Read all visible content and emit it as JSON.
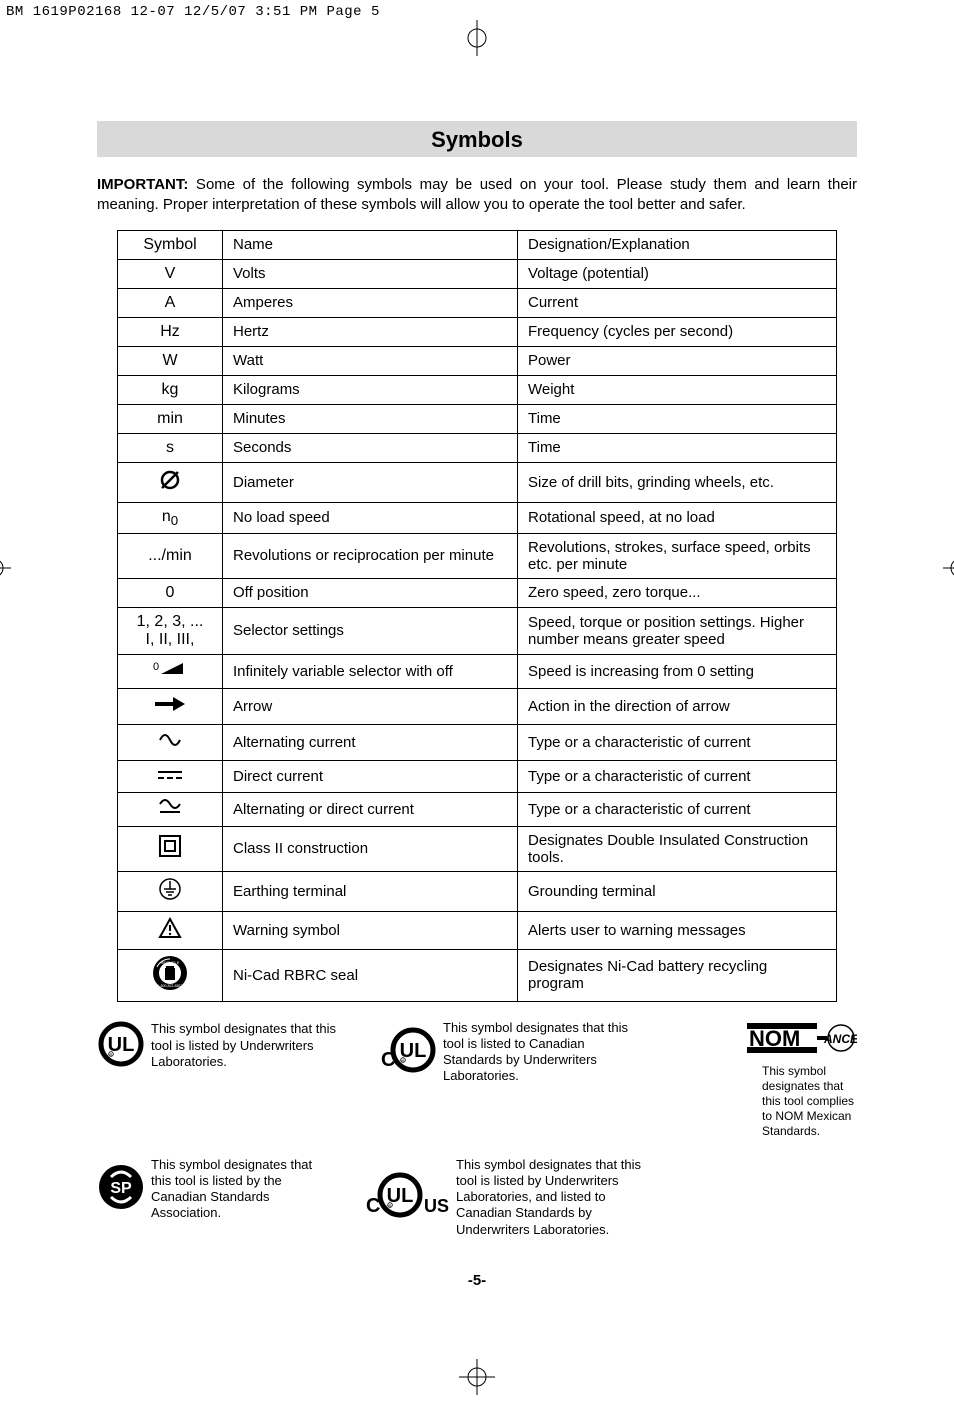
{
  "header_strip": "BM 1619P02168 12-07  12/5/07  3:51 PM  Page 5",
  "title": "Symbols",
  "intro_bold": "IMPORTANT:",
  "intro_rest": " Some of the following symbols may be used on your tool.  Please study them and learn their meaning.  Proper interpretation of these symbols will allow you to operate the tool better and safer.",
  "table": {
    "header": {
      "c1": "Symbol",
      "c2": "Name",
      "c3": "Designation/Explanation"
    },
    "rows": [
      {
        "sym": "V",
        "name": "Volts",
        "desc": "Voltage (potential)"
      },
      {
        "sym": "A",
        "name": "Amperes",
        "desc": "Current"
      },
      {
        "sym": "Hz",
        "name": "Hertz",
        "desc": "Frequency (cycles per second)"
      },
      {
        "sym": "W",
        "name": "Watt",
        "desc": "Power"
      },
      {
        "sym": "kg",
        "name": "Kilograms",
        "desc": "Weight"
      },
      {
        "sym": "min",
        "name": "Minutes",
        "desc": "Time"
      },
      {
        "sym": "s",
        "name": "Seconds",
        "desc": "Time"
      },
      {
        "sym_svg": "diameter",
        "name": "Diameter",
        "desc": "Size of drill bits, grinding wheels,  etc."
      },
      {
        "sym_html": "n<sub>0</sub>",
        "name": "No load speed",
        "desc": "Rotational speed, at no load"
      },
      {
        "sym": ".../min",
        "name": "Revolutions or reciprocation per minute",
        "desc": "Revolutions, strokes, surface speed, orbits etc. per minute"
      },
      {
        "sym": "0",
        "name": "Off position",
        "desc": "Zero speed, zero torque..."
      },
      {
        "sym_html": "1, 2, 3, ...<br>I, II, III,",
        "name": "Selector settings",
        "desc": "Speed, torque or position settings. Higher number means greater speed"
      },
      {
        "sym_svg": "wedge",
        "name": "Infinitely variable selector with off",
        "desc": "Speed is increasing from 0 setting"
      },
      {
        "sym_svg": "arrow",
        "name": "Arrow",
        "desc": "Action in the direction of arrow"
      },
      {
        "sym_svg": "ac",
        "name": "Alternating current",
        "desc": "Type or a characteristic of current"
      },
      {
        "sym_svg": "dc",
        "name": "Direct current",
        "desc": "Type or a characteristic of current"
      },
      {
        "sym_svg": "acdc",
        "name": "Alternating or direct current",
        "desc": "Type or a characteristic of current"
      },
      {
        "sym_svg": "class2",
        "name": "Class II  construction",
        "desc": "Designates Double Insulated Construction tools."
      },
      {
        "sym_svg": "earth",
        "name": "Earthing terminal",
        "desc": "Grounding terminal"
      },
      {
        "sym_svg": "warning",
        "name": "Warning symbol",
        "desc": "Alerts user to warning messages"
      },
      {
        "sym_svg": "rbrc",
        "name": "Ni-Cad RBRC seal",
        "desc": "Designates Ni-Cad battery recycling program"
      }
    ]
  },
  "certs": {
    "ul": "This symbol designates that this tool is listed by Underwriters Laboratories.",
    "cul": "This symbol designates that this tool is listed to Canadian Standards by Underwriters Laboratories.",
    "csa": "This symbol designates that this tool is listed by the Canadian Standards Association.",
    "culus": "This symbol designates that this tool is listed by Underwriters Laboratories, and listed to Canadian Standards by Underwriters Laboratories.",
    "nom": "This symbol designates that this tool complies to NOM Mexican Standards."
  },
  "page_number": "-5-"
}
